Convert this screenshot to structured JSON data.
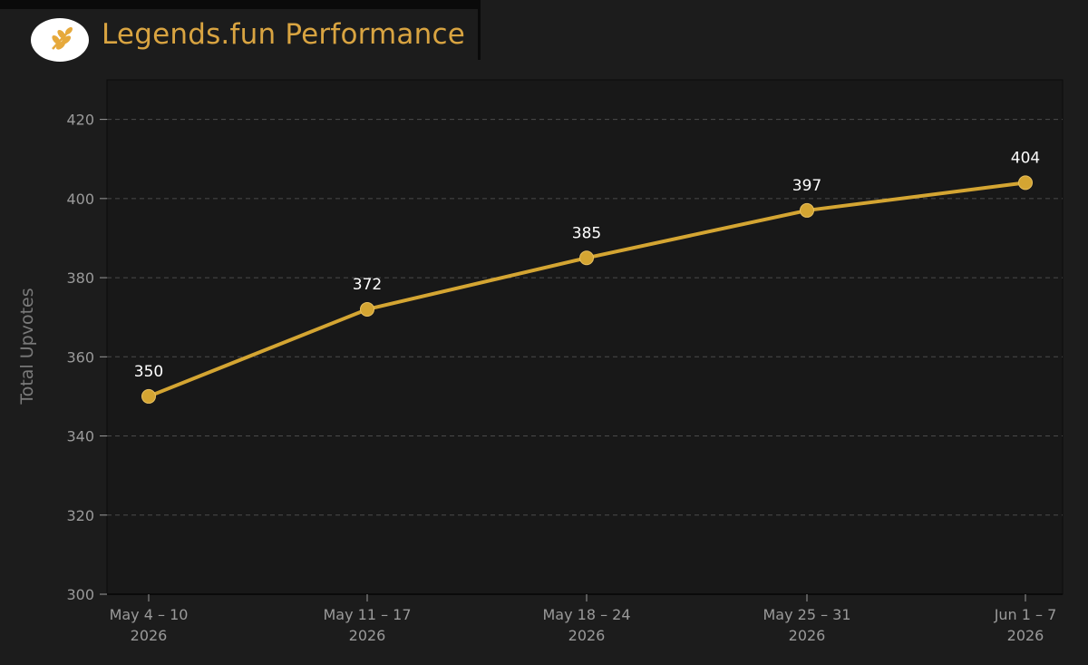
{
  "header": {
    "title": "Legends.fun Performance",
    "logo_icon": "wheat-icon"
  },
  "colors": {
    "background": "#1c1c1c",
    "plot_background": "#181818",
    "accent": "#d9a441",
    "line": "#d4a532",
    "grid": "#4a4a4a",
    "axis_text": "#9a9a9a",
    "label_text": "#ffffff"
  },
  "chart_data": {
    "type": "line",
    "title": "",
    "xlabel": "",
    "ylabel": "Total Upvotes",
    "categories": [
      [
        "May 4 – 10",
        "2026"
      ],
      [
        "May 11 – 17",
        "2026"
      ],
      [
        "May 18 – 24",
        "2026"
      ],
      [
        "May 25 – 31",
        "2026"
      ],
      [
        "Jun 1 – 7",
        "2026"
      ]
    ],
    "series": [
      {
        "values": [
          350,
          372,
          385,
          397,
          404
        ]
      }
    ],
    "data_labels": [
      "350",
      "372",
      "385",
      "397",
      "404"
    ],
    "ylim": [
      300,
      430
    ],
    "yticks": [
      300,
      320,
      340,
      360,
      380,
      400,
      420
    ],
    "grid": "horizontal dashed",
    "legend": "none"
  }
}
